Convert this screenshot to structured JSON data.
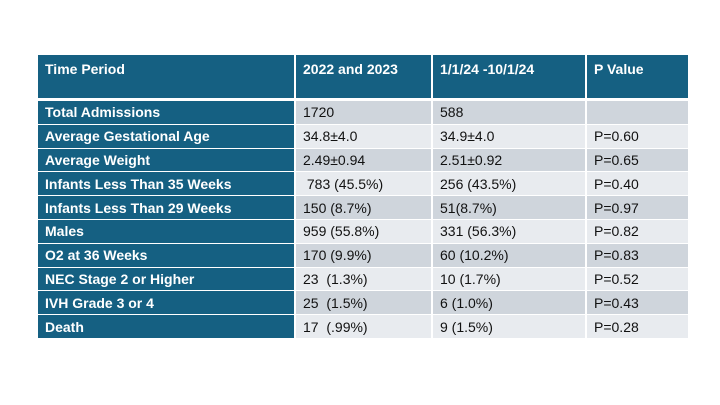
{
  "table": {
    "headers": [
      "Time Period",
      "2022 and 2023",
      "1/1/24 -10/1/24",
      "P Value"
    ],
    "rows": [
      {
        "label": "Total Admissions",
        "a": "1720",
        "b": "588",
        "p": ""
      },
      {
        "label": "Average Gestational Age",
        "a": "34.8±4.0",
        "b": "34.9±4.0",
        "p": "P=0.60"
      },
      {
        "label": "Average Weight",
        "a": "2.49±0.94",
        "b": "2.51±0.92",
        "p": "P=0.65"
      },
      {
        "label": "Infants Less Than 35 Weeks",
        "a": " 783 (45.5%)",
        "b": "256 (43.5%)",
        "p": "P=0.40"
      },
      {
        "label": "Infants Less Than 29 Weeks",
        "a": "150 (8.7%)",
        "b": "51(8.7%)",
        "p": "P=0.97"
      },
      {
        "label": "Males",
        "a": "959 (55.8%)",
        "b": "331 (56.3%)",
        "p": "P=0.82"
      },
      {
        "label": "O2 at 36 Weeks",
        "a": "170 (9.9%)",
        "b": "60 (10.2%)",
        "p": "P=0.83"
      },
      {
        "label": "NEC Stage 2 or Higher",
        "a": "23  (1.3%)",
        "b": "10 (1.7%)",
        "p": "P=0.52"
      },
      {
        "label": "IVH Grade 3 or 4",
        "a": "25  (1.5%)",
        "b": "6 (1.0%)",
        "p": "P=0.43"
      },
      {
        "label": "Death",
        "a": "17  (.99%)",
        "b": "9 (1.5%)",
        "p": "P=0.28"
      }
    ]
  },
  "colors": {
    "header_bg": "#156082",
    "band_dark": "#cfd5dc",
    "band_light": "#e8ebef",
    "header_text": "#ffffff"
  }
}
